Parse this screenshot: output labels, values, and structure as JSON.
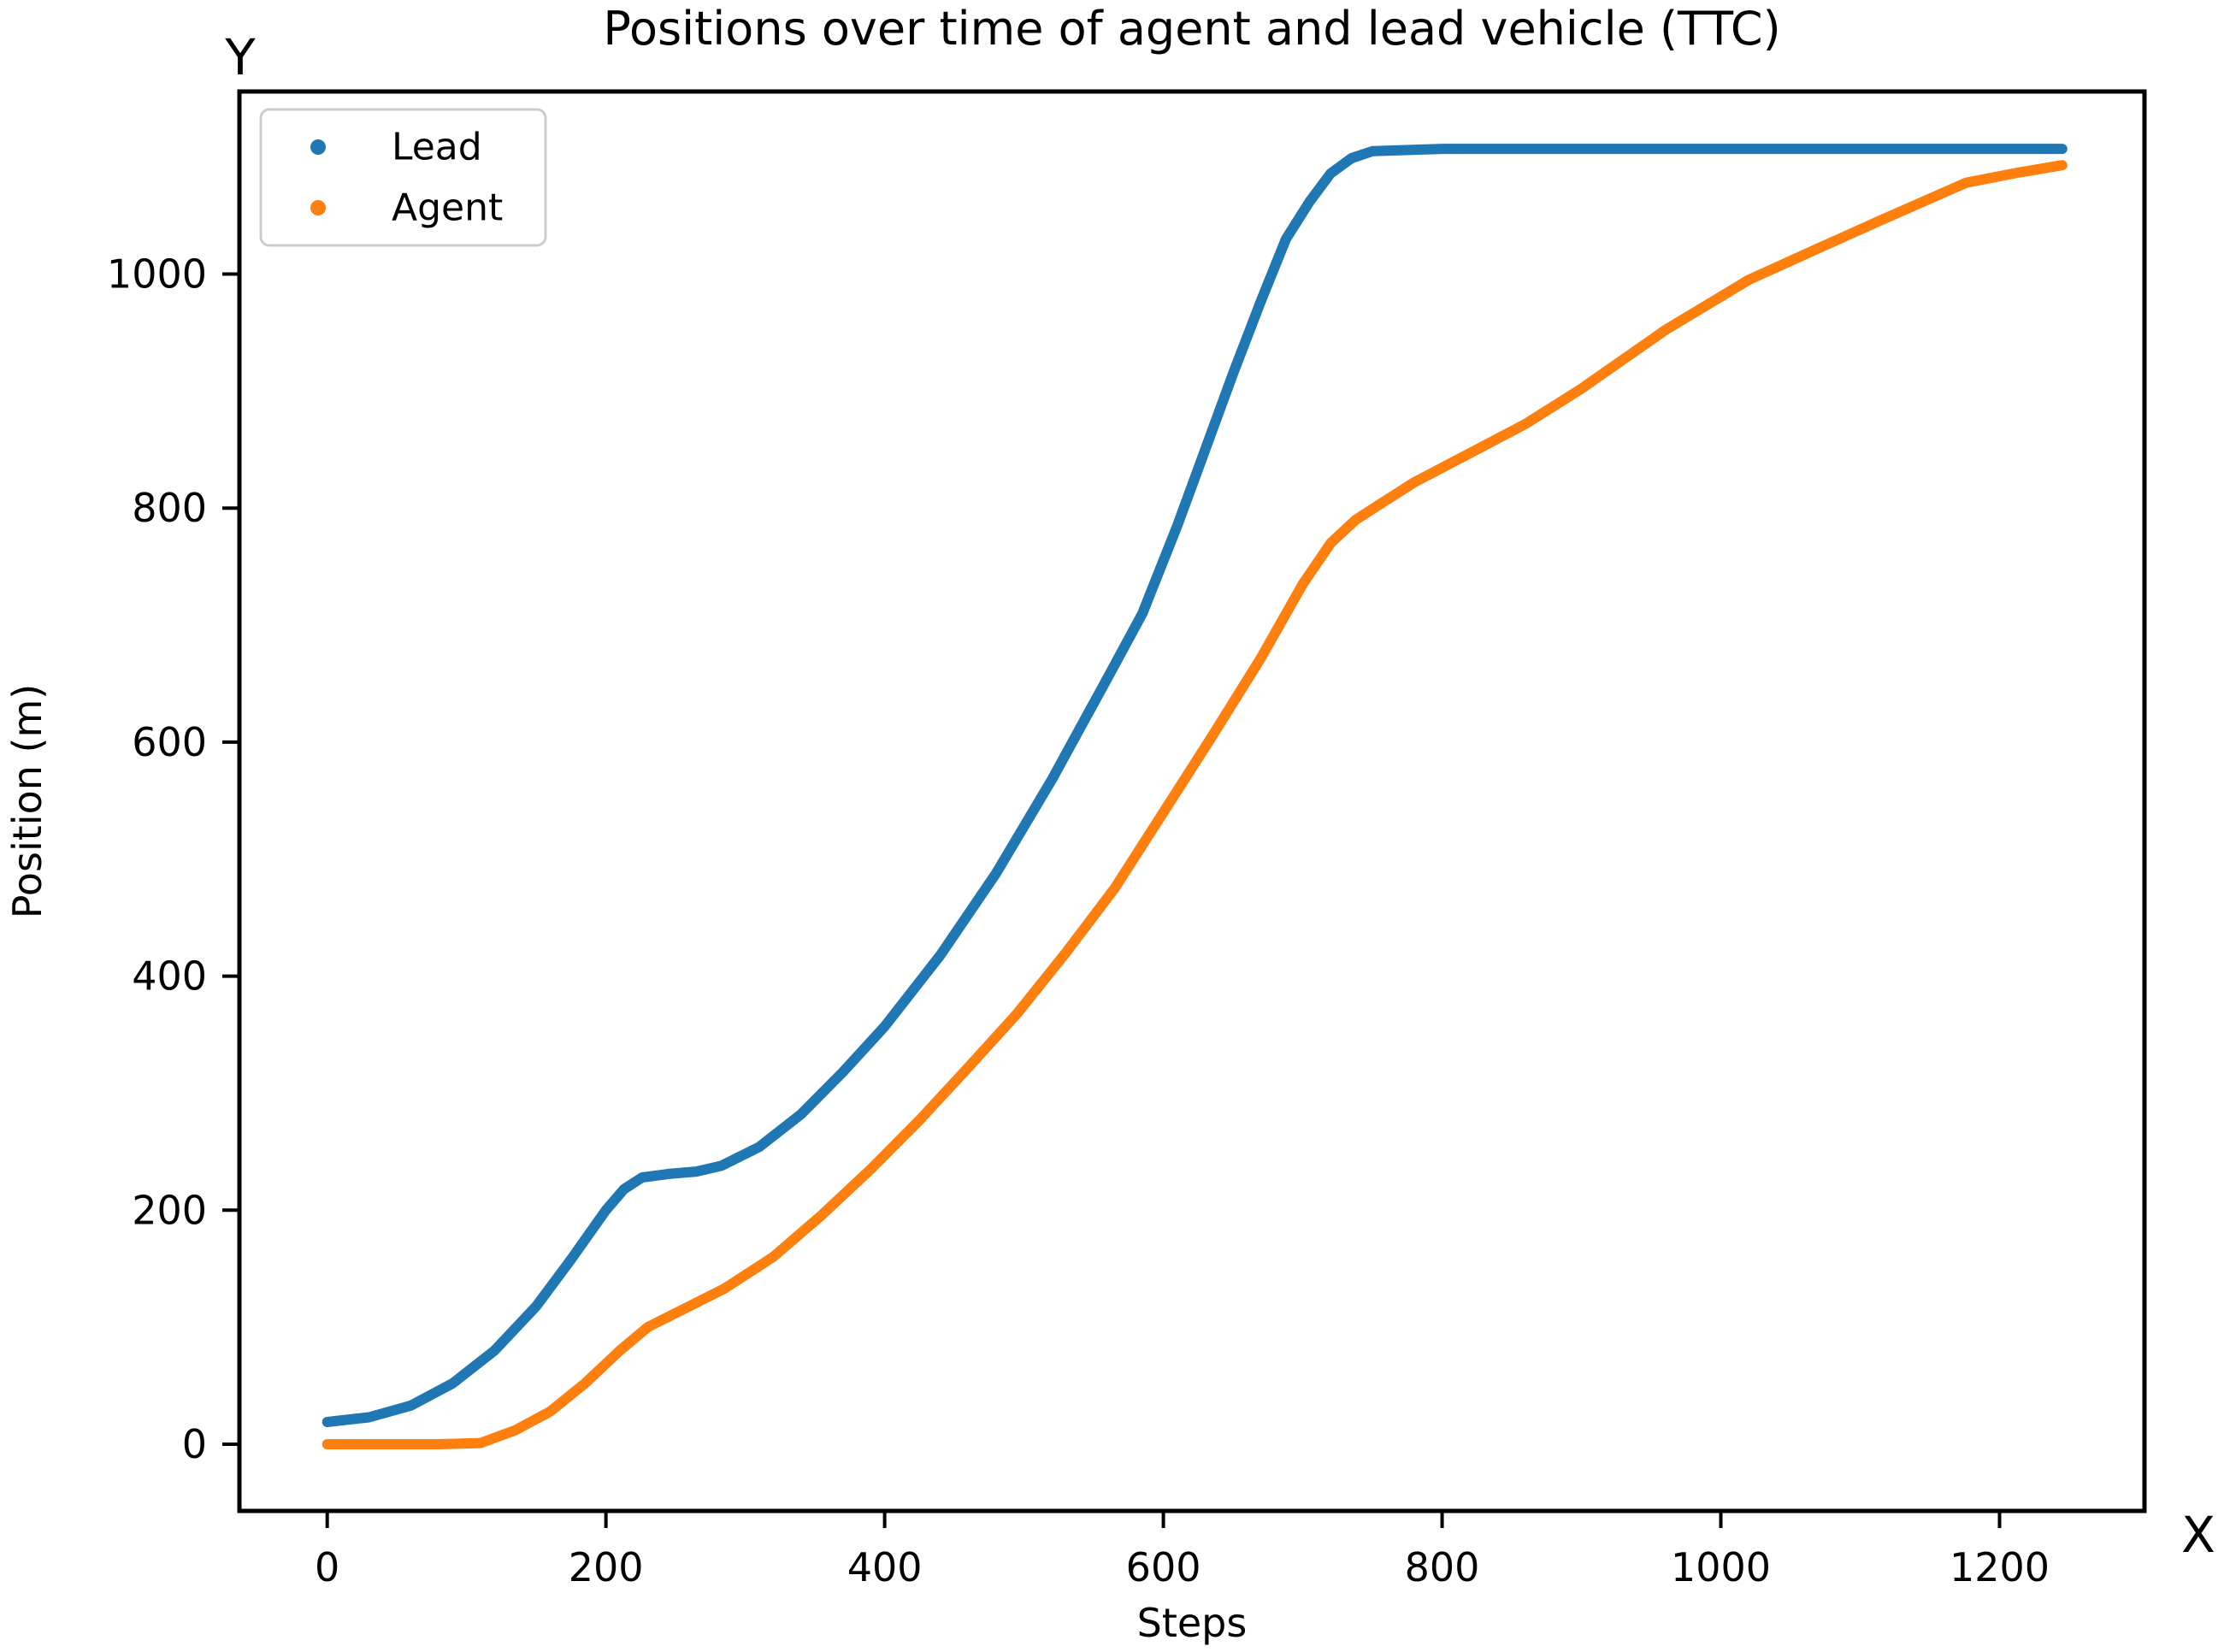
{
  "chart_data": {
    "type": "scatter",
    "title": "Positions over time of agent and lead vehicle (TTC)",
    "xlabel": "Steps",
    "ylabel": "Position (m)",
    "axis_annotations": {
      "y_axis": "Y",
      "x_axis": "X"
    },
    "x_ticks": [
      0,
      200,
      400,
      600,
      800,
      1000,
      1200
    ],
    "y_ticks": [
      0,
      200,
      400,
      600,
      800,
      1000
    ],
    "xlim": [
      -63,
      1304
    ],
    "ylim": [
      -57,
      1156
    ],
    "grid": false,
    "legend_position": "upper left",
    "background_color": "#ffffff",
    "spine_color": "#000000",
    "series": [
      {
        "name": "Lead",
        "color": "#1f77b4",
        "marker": "dot",
        "points": [
          [
            0,
            19
          ],
          [
            30,
            23
          ],
          [
            60,
            33
          ],
          [
            90,
            52
          ],
          [
            120,
            80
          ],
          [
            150,
            118
          ],
          [
            175,
            158
          ],
          [
            200,
            200
          ],
          [
            213,
            218
          ],
          [
            226,
            228
          ],
          [
            245,
            231
          ],
          [
            265,
            233
          ],
          [
            283,
            238
          ],
          [
            310,
            254
          ],
          [
            340,
            282
          ],
          [
            370,
            318
          ],
          [
            400,
            357
          ],
          [
            440,
            418
          ],
          [
            480,
            488
          ],
          [
            520,
            568
          ],
          [
            560,
            655
          ],
          [
            585,
            710
          ],
          [
            610,
            785
          ],
          [
            630,
            850
          ],
          [
            650,
            915
          ],
          [
            670,
            977
          ],
          [
            688,
            1030
          ],
          [
            705,
            1062
          ],
          [
            720,
            1086
          ],
          [
            735,
            1099
          ],
          [
            750,
            1105
          ],
          [
            800,
            1107
          ],
          [
            900,
            1107
          ],
          [
            1000,
            1107
          ],
          [
            1100,
            1107
          ],
          [
            1245,
            1107
          ]
        ]
      },
      {
        "name": "Agent",
        "color": "#ff7f0e",
        "marker": "dot",
        "points": [
          [
            0,
            0
          ],
          [
            40,
            0
          ],
          [
            80,
            0
          ],
          [
            110,
            1
          ],
          [
            135,
            12
          ],
          [
            160,
            28
          ],
          [
            185,
            52
          ],
          [
            210,
            80
          ],
          [
            230,
            100
          ],
          [
            255,
            115
          ],
          [
            285,
            133
          ],
          [
            320,
            160
          ],
          [
            355,
            196
          ],
          [
            390,
            235
          ],
          [
            425,
            277
          ],
          [
            460,
            322
          ],
          [
            495,
            368
          ],
          [
            530,
            420
          ],
          [
            565,
            475
          ],
          [
            600,
            540
          ],
          [
            635,
            605
          ],
          [
            670,
            672
          ],
          [
            700,
            735
          ],
          [
            720,
            770
          ],
          [
            738,
            790
          ],
          [
            755,
            803
          ],
          [
            780,
            822
          ],
          [
            820,
            847
          ],
          [
            860,
            872
          ],
          [
            900,
            902
          ],
          [
            960,
            952
          ],
          [
            1020,
            995
          ],
          [
            1070,
            1022
          ],
          [
            1113,
            1045
          ],
          [
            1176,
            1078
          ],
          [
            1215,
            1087
          ],
          [
            1245,
            1093
          ]
        ]
      }
    ]
  }
}
